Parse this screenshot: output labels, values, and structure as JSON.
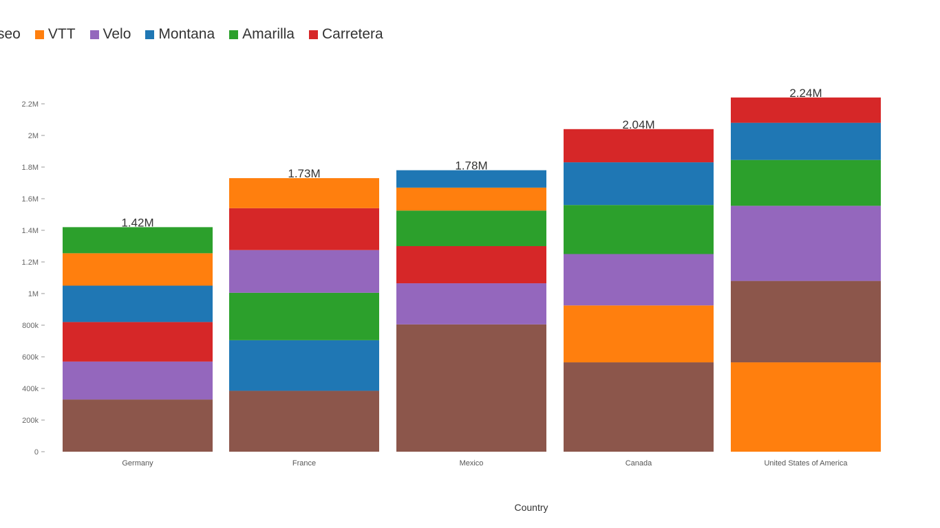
{
  "legend": {
    "items": [
      {
        "label": "seo",
        "color": "#8c564b"
      },
      {
        "label": "VTT",
        "color": "#ff7f0e"
      },
      {
        "label": "Velo",
        "color": "#9467bd"
      },
      {
        "label": "Montana",
        "color": "#1f77b4"
      },
      {
        "label": "Amarilla",
        "color": "#2ca02c"
      },
      {
        "label": "Carretera",
        "color": "#d62728"
      }
    ]
  },
  "chart_data": {
    "type": "bar",
    "stacked": true,
    "xlabel": "Country",
    "ylabel": "",
    "ylim": [
      0,
      2200000
    ],
    "yticks": [
      {
        "value": 0,
        "label": "0"
      },
      {
        "value": 200000,
        "label": "200k"
      },
      {
        "value": 400000,
        "label": "400k"
      },
      {
        "value": 600000,
        "label": "600k"
      },
      {
        "value": 800000,
        "label": "800k"
      },
      {
        "value": 1000000,
        "label": "1M"
      },
      {
        "value": 1200000,
        "label": "1.2M"
      },
      {
        "value": 1400000,
        "label": "1.4M"
      },
      {
        "value": 1600000,
        "label": "1.6M"
      },
      {
        "value": 1800000,
        "label": "1.8M"
      },
      {
        "value": 2000000,
        "label": "2M"
      },
      {
        "value": 2200000,
        "label": "2.2M"
      }
    ],
    "grid": false,
    "legend_position": "top-left",
    "categories": [
      {
        "name": "Germany",
        "total_label": "1.42M",
        "segments": [
          {
            "series": "seo",
            "value": 330000,
            "color": "#8c564b"
          },
          {
            "series": "Velo",
            "value": 240000,
            "color": "#9467bd"
          },
          {
            "series": "Carretera",
            "value": 250000,
            "color": "#d62728"
          },
          {
            "series": "Montana",
            "value": 230000,
            "color": "#1f77b4"
          },
          {
            "series": "VTT",
            "value": 205000,
            "color": "#ff7f0e"
          },
          {
            "series": "Amarilla",
            "value": 165000,
            "color": "#2ca02c"
          }
        ]
      },
      {
        "name": "France",
        "total_label": "1.73M",
        "segments": [
          {
            "series": "seo",
            "value": 385000,
            "color": "#8c564b"
          },
          {
            "series": "Montana",
            "value": 320000,
            "color": "#1f77b4"
          },
          {
            "series": "Amarilla",
            "value": 300000,
            "color": "#2ca02c"
          },
          {
            "series": "Velo",
            "value": 270000,
            "color": "#9467bd"
          },
          {
            "series": "Carretera",
            "value": 265000,
            "color": "#d62728"
          },
          {
            "series": "VTT",
            "value": 190000,
            "color": "#ff7f0e"
          }
        ]
      },
      {
        "name": "Mexico",
        "total_label": "1.78M",
        "segments": [
          {
            "series": "seo",
            "value": 805000,
            "color": "#8c564b"
          },
          {
            "series": "Velo",
            "value": 260000,
            "color": "#9467bd"
          },
          {
            "series": "Carretera",
            "value": 235000,
            "color": "#d62728"
          },
          {
            "series": "Amarilla",
            "value": 225000,
            "color": "#2ca02c"
          },
          {
            "series": "VTT",
            "value": 145000,
            "color": "#ff7f0e"
          },
          {
            "series": "Montana",
            "value": 110000,
            "color": "#1f77b4"
          }
        ]
      },
      {
        "name": "Canada",
        "total_label": "2.04M",
        "segments": [
          {
            "series": "seo",
            "value": 565000,
            "color": "#8c564b"
          },
          {
            "series": "VTT",
            "value": 360000,
            "color": "#ff7f0e"
          },
          {
            "series": "Velo",
            "value": 325000,
            "color": "#9467bd"
          },
          {
            "series": "Amarilla",
            "value": 310000,
            "color": "#2ca02c"
          },
          {
            "series": "Montana",
            "value": 270000,
            "color": "#1f77b4"
          },
          {
            "series": "Carretera",
            "value": 210000,
            "color": "#d62728"
          }
        ]
      },
      {
        "name": "United States of America",
        "total_label": "2.24M",
        "segments": [
          {
            "series": "VTT",
            "value": 565000,
            "color": "#ff7f0e"
          },
          {
            "series": "seo",
            "value": 515000,
            "color": "#8c564b"
          },
          {
            "series": "Velo",
            "value": 475000,
            "color": "#9467bd"
          },
          {
            "series": "Amarilla",
            "value": 290000,
            "color": "#2ca02c"
          },
          {
            "series": "Montana",
            "value": 235000,
            "color": "#1f77b4"
          },
          {
            "series": "Carretera",
            "value": 160000,
            "color": "#d62728"
          }
        ]
      }
    ]
  }
}
